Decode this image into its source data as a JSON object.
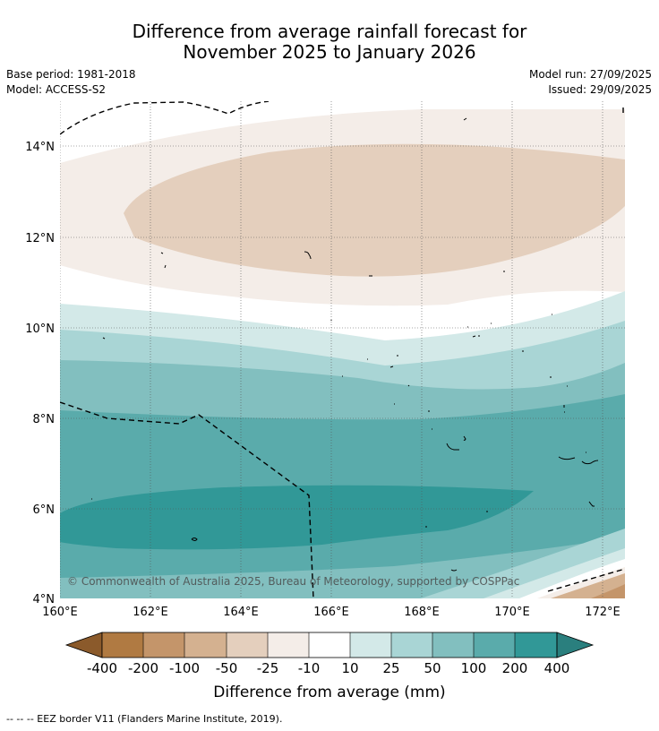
{
  "title": {
    "line1": "Difference from average rainfall forecast for",
    "line2": "November 2025 to January 2026"
  },
  "meta": {
    "base_period": "Base period: 1981-2018",
    "model": "Model: ACCESS-S2",
    "model_run": "Model run: 27/09/2025",
    "issued": "Issued: 29/09/2025"
  },
  "map": {
    "copyright": "© Commonwealth of Australia 2025, Bureau of Meteorology, supported by COSPPac",
    "lat_ticks": [
      "14°N",
      "12°N",
      "10°N",
      "8°N",
      "6°N",
      "4°N"
    ],
    "lon_ticks": [
      "160°E",
      "162°E",
      "164°E",
      "166°E",
      "168°E",
      "170°E",
      "172°E"
    ]
  },
  "colorbar": {
    "title": "Difference from average (mm)",
    "labels": [
      "-400",
      "-200",
      "-100",
      "-50",
      "-25",
      "-10",
      "10",
      "25",
      "50",
      "100",
      "200",
      "400"
    ],
    "colors": {
      "lt_-400": "#8b5a2b",
      "-400_-200": "#b07a42",
      "-200_-100": "#c4956a",
      "-100_-50": "#d4b190",
      "-50_-25": "#e4cfbd",
      "-25_-10": "#f4ede8",
      "-10_10": "#ffffff",
      "10_25": "#d3e9e8",
      "25_50": "#a9d5d5",
      "50_100": "#82bfbf",
      "100_200": "#5aabab",
      "200_400": "#319897",
      "gt_400": "#2a7f7e"
    }
  },
  "footer": {
    "legend_line": "--  --  -- EEZ border V11 (Flanders Marine Institute, 2019)."
  }
}
